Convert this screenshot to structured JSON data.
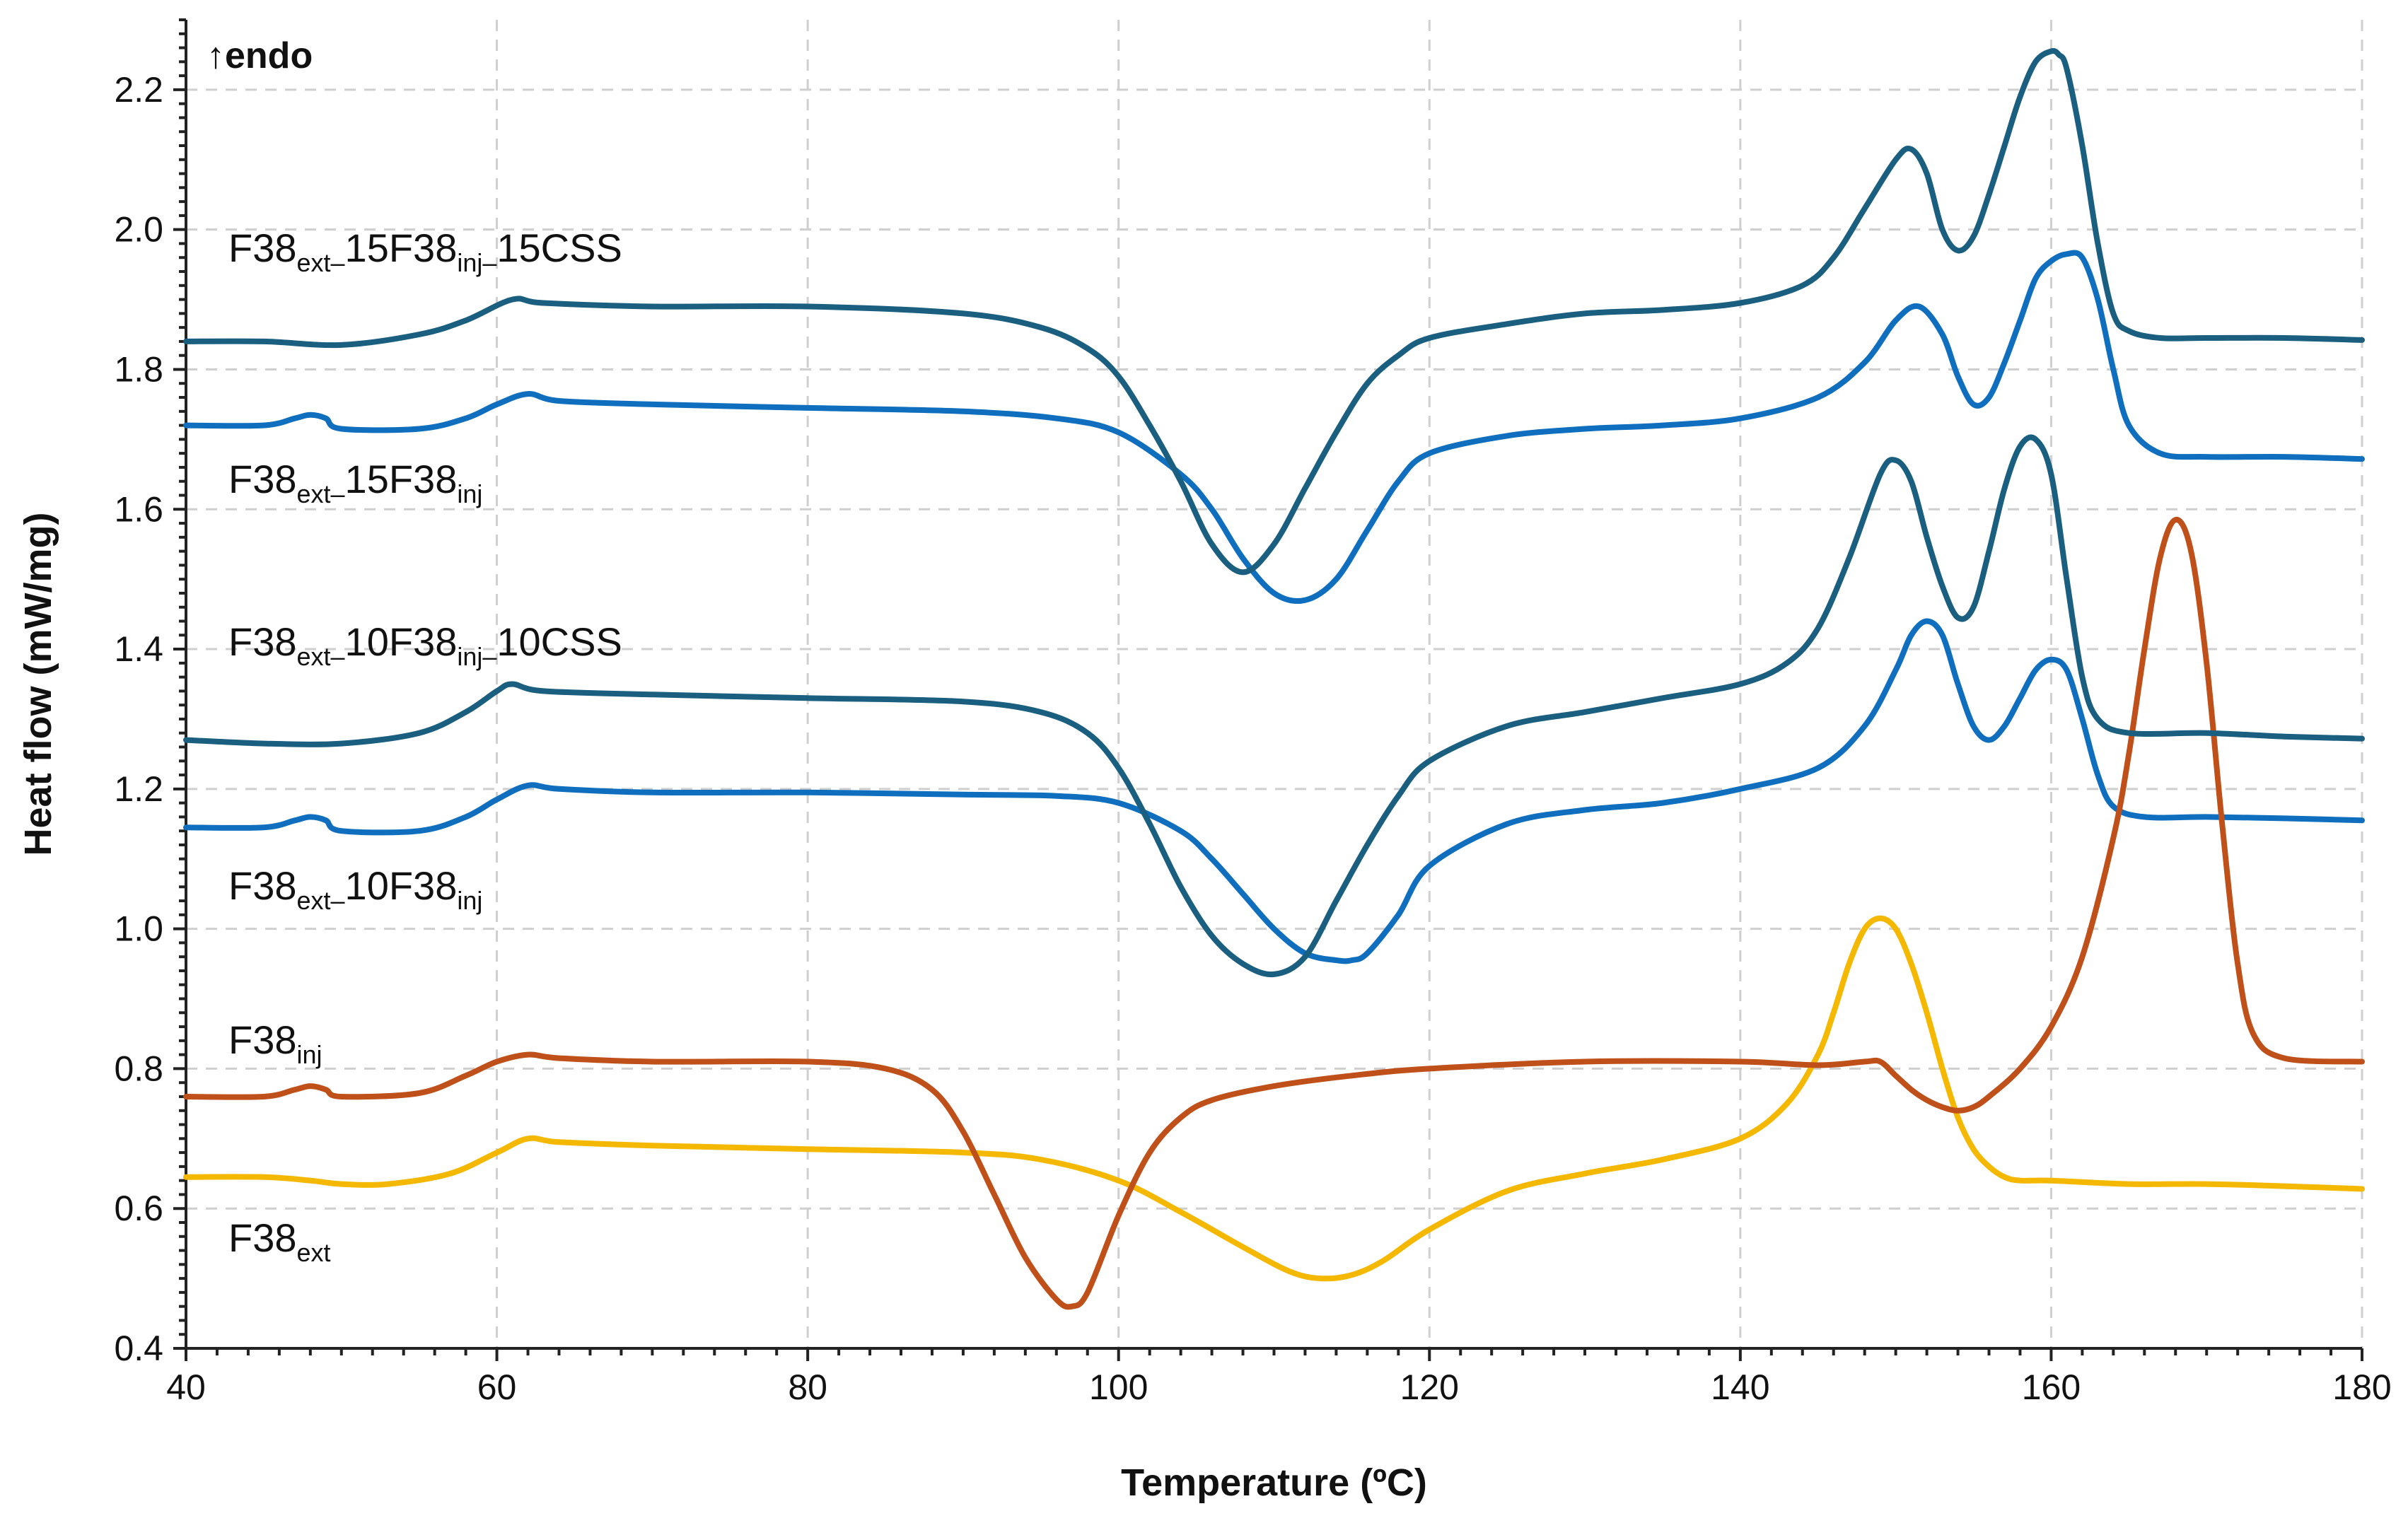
{
  "chart_data": {
    "type": "line",
    "title": "",
    "xlabel": "Temperature (ºC)",
    "ylabel": "Heat flow (mW/mg)",
    "xlim": [
      40,
      180
    ],
    "ylim": [
      0.4,
      2.3
    ],
    "x_ticks": [
      "40",
      "60",
      "80",
      "100",
      "120",
      "140",
      "160",
      "180"
    ],
    "y_ticks": [
      "0.4",
      "0.6",
      "0.8",
      "1.0",
      "1.2",
      "1.4",
      "1.6",
      "1.8",
      "2.0",
      "2.2"
    ],
    "grid": true,
    "annotation": "↑endo",
    "series": [
      {
        "name": "F38_ext-15F38_inj-15CSS",
        "label_parts": [
          "F38",
          "ext–",
          "15F38",
          "inj–",
          "15CSS"
        ],
        "color": "#1a5e80",
        "x": [
          40,
          45,
          50,
          55,
          58,
          61,
          63,
          70,
          80,
          90,
          95,
          98,
          100,
          102,
          104,
          106,
          108,
          110,
          112,
          114,
          116,
          118,
          120,
          125,
          130,
          135,
          140,
          144,
          146,
          148,
          150,
          151,
          152,
          153,
          154,
          155,
          156,
          157,
          158,
          159,
          160,
          160.5,
          161,
          162,
          163,
          164,
          165,
          167,
          170,
          175,
          180
        ],
        "values": [
          1.84,
          1.84,
          1.835,
          1.85,
          1.87,
          1.9,
          1.895,
          1.89,
          1.89,
          1.88,
          1.86,
          1.83,
          1.79,
          1.72,
          1.64,
          1.55,
          1.51,
          1.55,
          1.63,
          1.71,
          1.78,
          1.82,
          1.845,
          1.865,
          1.88,
          1.885,
          1.895,
          1.92,
          1.96,
          2.03,
          2.1,
          2.115,
          2.08,
          2.0,
          1.97,
          1.99,
          2.05,
          2.12,
          2.19,
          2.24,
          2.255,
          2.25,
          2.23,
          2.12,
          1.98,
          1.88,
          1.855,
          1.845,
          1.845,
          1.845,
          1.842
        ]
      },
      {
        "name": "F38_ext-15F38_inj",
        "label_parts": [
          "F38",
          "ext–",
          "15F38",
          "inj",
          ""
        ],
        "color": "#0f6fbe",
        "x": [
          40,
          45,
          47,
          48,
          49,
          50,
          55,
          58,
          60,
          62,
          64,
          70,
          80,
          90,
          96,
          100,
          104,
          106,
          108,
          110,
          112,
          114,
          116,
          118,
          120,
          125,
          130,
          135,
          140,
          145,
          148,
          150,
          151.5,
          153,
          154,
          155,
          156,
          157,
          158,
          159,
          160,
          161,
          162,
          163,
          164,
          165,
          167,
          170,
          175,
          180
        ],
        "values": [
          1.72,
          1.72,
          1.73,
          1.735,
          1.73,
          1.715,
          1.715,
          1.73,
          1.75,
          1.765,
          1.755,
          1.75,
          1.745,
          1.74,
          1.73,
          1.71,
          1.65,
          1.6,
          1.53,
          1.48,
          1.47,
          1.5,
          1.57,
          1.64,
          1.68,
          1.705,
          1.715,
          1.72,
          1.73,
          1.76,
          1.81,
          1.87,
          1.89,
          1.85,
          1.79,
          1.75,
          1.76,
          1.81,
          1.87,
          1.93,
          1.955,
          1.965,
          1.96,
          1.9,
          1.8,
          1.72,
          1.68,
          1.675,
          1.675,
          1.672
        ]
      },
      {
        "name": "F38_ext-10F38_inj-10CSS",
        "label_parts": [
          "F38",
          "ext–",
          "10F38",
          "inj–",
          "10CSS"
        ],
        "color": "#1a5e80",
        "x": [
          40,
          45,
          50,
          55,
          58,
          60,
          61,
          63,
          70,
          80,
          90,
          95,
          98,
          100,
          102,
          104,
          106,
          108,
          110,
          112,
          114,
          116,
          118,
          120,
          125,
          130,
          135,
          140,
          143,
          145,
          147,
          149,
          150,
          151,
          152,
          153,
          154,
          155,
          156,
          157,
          158,
          159,
          160,
          161,
          162,
          163,
          165,
          170,
          175,
          180
        ],
        "values": [
          1.27,
          1.265,
          1.265,
          1.28,
          1.31,
          1.34,
          1.35,
          1.34,
          1.335,
          1.33,
          1.325,
          1.31,
          1.28,
          1.23,
          1.15,
          1.06,
          0.99,
          0.95,
          0.935,
          0.96,
          1.04,
          1.12,
          1.19,
          1.24,
          1.29,
          1.31,
          1.33,
          1.35,
          1.38,
          1.43,
          1.53,
          1.65,
          1.67,
          1.64,
          1.56,
          1.49,
          1.445,
          1.46,
          1.54,
          1.63,
          1.69,
          1.7,
          1.65,
          1.5,
          1.36,
          1.3,
          1.28,
          1.28,
          1.275,
          1.272
        ]
      },
      {
        "name": "F38_ext-10F38_inj",
        "label_parts": [
          "F38",
          "ext–",
          "10F38",
          "inj",
          ""
        ],
        "color": "#0f6fbe",
        "x": [
          40,
          45,
          47,
          48,
          49,
          50,
          55,
          58,
          60,
          62,
          64,
          70,
          80,
          90,
          96,
          100,
          104,
          106,
          108,
          110,
          112,
          114,
          115,
          116,
          118,
          120,
          125,
          130,
          135,
          140,
          145,
          148,
          150,
          151,
          152,
          153,
          154,
          155,
          156,
          157,
          158,
          159,
          160,
          161,
          162,
          163,
          164,
          166,
          170,
          175,
          180
        ],
        "values": [
          1.145,
          1.145,
          1.155,
          1.16,
          1.155,
          1.14,
          1.14,
          1.16,
          1.185,
          1.205,
          1.2,
          1.195,
          1.195,
          1.192,
          1.19,
          1.18,
          1.14,
          1.1,
          1.05,
          1.0,
          0.965,
          0.955,
          0.955,
          0.965,
          1.02,
          1.09,
          1.15,
          1.17,
          1.18,
          1.2,
          1.23,
          1.29,
          1.37,
          1.42,
          1.44,
          1.42,
          1.35,
          1.29,
          1.27,
          1.29,
          1.33,
          1.37,
          1.385,
          1.37,
          1.3,
          1.22,
          1.175,
          1.16,
          1.16,
          1.158,
          1.155
        ]
      },
      {
        "name": "F38_inj",
        "label_parts": [
          "F38",
          "inj",
          "",
          "",
          ""
        ],
        "color": "#c0501a",
        "x": [
          40,
          45,
          47,
          48,
          49,
          50,
          55,
          58,
          60,
          62,
          64,
          70,
          80,
          85,
          88,
          90,
          92,
          94,
          96,
          97,
          98,
          100,
          102,
          104,
          106,
          110,
          115,
          120,
          130,
          140,
          145,
          148,
          149,
          150,
          151,
          152,
          153,
          154,
          155,
          156,
          158,
          160,
          162,
          164,
          165,
          166,
          167,
          168,
          169,
          170,
          171,
          172,
          173,
          175,
          180
        ],
        "values": [
          0.76,
          0.76,
          0.77,
          0.775,
          0.77,
          0.76,
          0.765,
          0.79,
          0.81,
          0.82,
          0.815,
          0.81,
          0.81,
          0.8,
          0.77,
          0.71,
          0.62,
          0.53,
          0.47,
          0.46,
          0.48,
          0.59,
          0.68,
          0.73,
          0.755,
          0.775,
          0.79,
          0.8,
          0.81,
          0.81,
          0.805,
          0.81,
          0.81,
          0.79,
          0.77,
          0.755,
          0.745,
          0.74,
          0.745,
          0.76,
          0.8,
          0.86,
          0.96,
          1.13,
          1.25,
          1.4,
          1.53,
          1.585,
          1.54,
          1.38,
          1.15,
          0.95,
          0.85,
          0.815,
          0.81
        ]
      },
      {
        "name": "F38_ext",
        "label_parts": [
          "F38",
          "ext",
          "",
          "",
          ""
        ],
        "color": "#f5b800",
        "x": [
          40,
          45,
          48,
          50,
          53,
          57,
          60,
          62,
          64,
          70,
          80,
          90,
          95,
          100,
          104,
          108,
          111,
          113,
          115,
          117,
          120,
          125,
          130,
          135,
          140,
          143,
          145,
          146,
          147,
          148,
          149,
          150,
          151,
          152,
          153,
          154,
          155,
          156,
          157,
          158,
          160,
          165,
          170,
          175,
          180
        ],
        "values": [
          0.645,
          0.645,
          0.64,
          0.635,
          0.635,
          0.65,
          0.68,
          0.7,
          0.695,
          0.69,
          0.685,
          0.68,
          0.67,
          0.64,
          0.595,
          0.545,
          0.51,
          0.5,
          0.505,
          0.525,
          0.57,
          0.625,
          0.65,
          0.67,
          0.7,
          0.75,
          0.82,
          0.88,
          0.95,
          1.0,
          1.015,
          1.0,
          0.95,
          0.88,
          0.8,
          0.73,
          0.685,
          0.66,
          0.645,
          0.64,
          0.64,
          0.635,
          0.635,
          0.632,
          0.628
        ]
      }
    ]
  }
}
